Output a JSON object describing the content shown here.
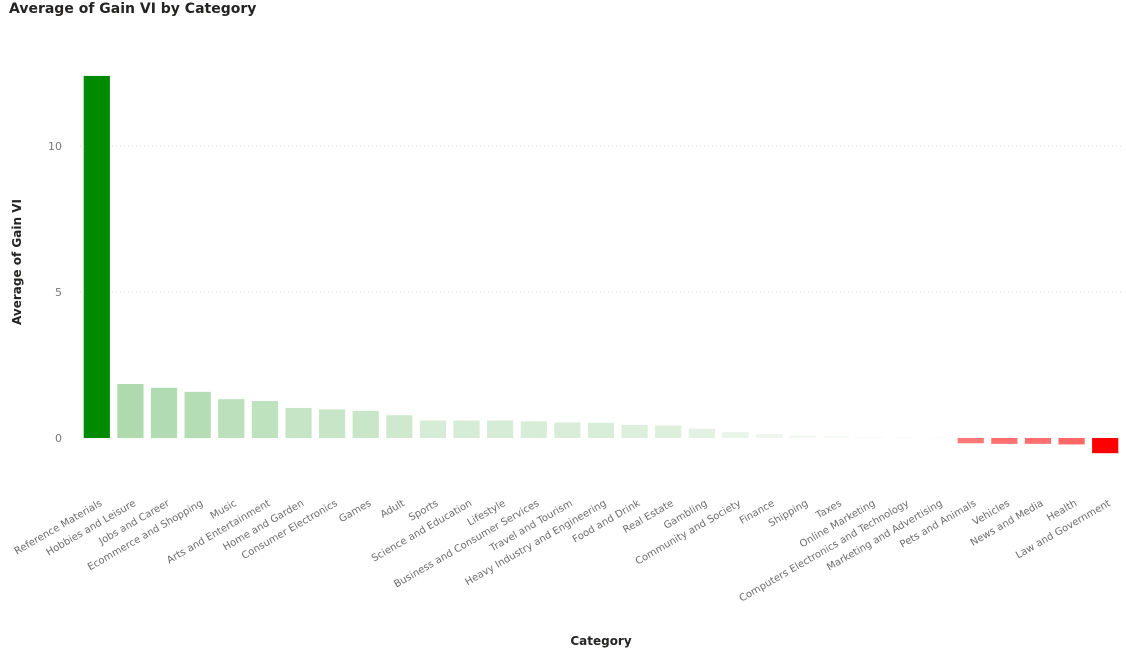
{
  "chart_data": {
    "type": "bar",
    "title": "Average of Gain VI by Category",
    "xlabel": "Category",
    "ylabel": "Average of Gain VI",
    "ylim": [
      -0.6,
      12.6
    ],
    "yticks": [
      0,
      5,
      10
    ],
    "grid": true,
    "color_scale": {
      "low": "#ff0000",
      "mid": "#ffffff",
      "high": "#008a00"
    },
    "categories": [
      "Reference Materials",
      "Hobbies and Leisure",
      "Jobs and Career",
      "Ecommerce and Shopping",
      "Music",
      "Arts and Entertainment",
      "Home and Garden",
      "Consumer Electronics",
      "Games",
      "Adult",
      "Sports",
      "Science and Education",
      "Lifestyle",
      "Business and Consumer Services",
      "Travel and Tourism",
      "Heavy Industry and Engineering",
      "Food and Drink",
      "Real Estate",
      "Gambling",
      "Community and Society",
      "Finance",
      "Shipping",
      "Taxes",
      "Online Marketing",
      "Computers Electronics and Technology",
      "Marketing and Advertising",
      "Pets and Animals",
      "Vehicles",
      "News and Media",
      "Health",
      "Law and Government"
    ],
    "values": [
      12.4,
      1.85,
      1.72,
      1.58,
      1.33,
      1.27,
      1.03,
      0.98,
      0.93,
      0.78,
      0.6,
      0.6,
      0.6,
      0.57,
      0.53,
      0.52,
      0.45,
      0.43,
      0.32,
      0.2,
      0.14,
      0.09,
      0.07,
      0.04,
      0.03,
      0.02,
      -0.18,
      -0.2,
      -0.2,
      -0.22,
      -0.52
    ]
  }
}
